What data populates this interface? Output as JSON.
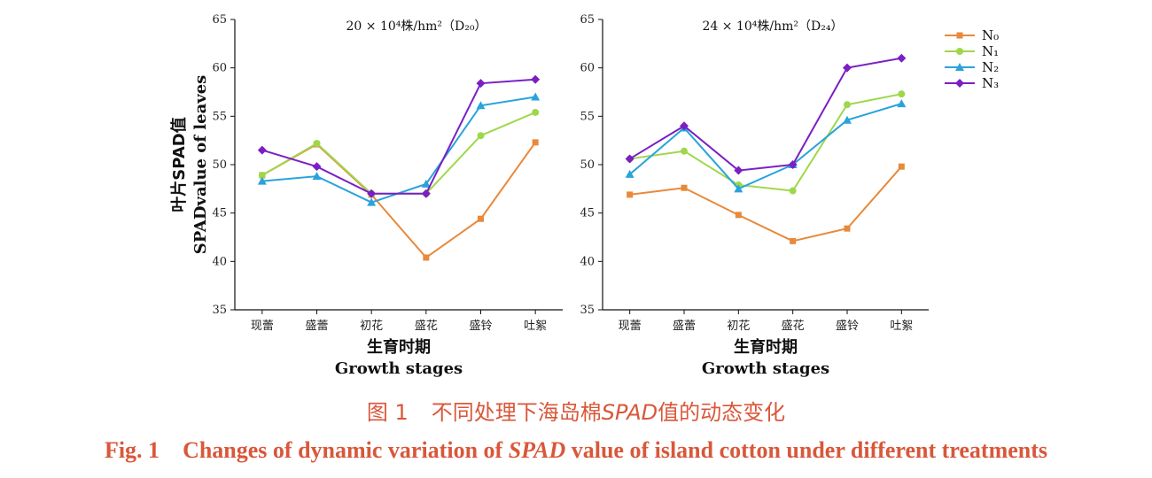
{
  "chart_data": [
    {
      "type": "line",
      "title": "20 × 10⁴株/hm²（D₂₀）",
      "categories": [
        "现蕾",
        "盛蕾",
        "初花",
        "盛花",
        "盛铃",
        "吐絮"
      ],
      "xlabel_cn": "生育时期",
      "xlabel_en": "Growth stages",
      "ylabel_cn": "叶片SPAD值",
      "ylabel_en": "SPADvalue of leaves",
      "ylim": [
        35,
        65
      ],
      "yticks": [
        35,
        40,
        45,
        50,
        55,
        60,
        65
      ],
      "grid": false,
      "series": [
        {
          "name": "N₀",
          "color": "#e8893b",
          "marker": "square",
          "values": [
            48.9,
            52.1,
            46.9,
            40.4,
            44.4,
            52.3
          ]
        },
        {
          "name": "N₁",
          "color": "#9ed84a",
          "marker": "circle",
          "values": [
            48.9,
            52.2,
            47.0,
            47.0,
            53.0,
            55.4
          ]
        },
        {
          "name": "N₂",
          "color": "#2aa3db",
          "marker": "triangle",
          "values": [
            48.3,
            48.8,
            46.1,
            48.0,
            56.1,
            57.0
          ]
        },
        {
          "name": "N₃",
          "color": "#7a1fc4",
          "marker": "diamond",
          "values": [
            51.5,
            49.8,
            47.0,
            47.0,
            58.4,
            58.8
          ]
        }
      ]
    },
    {
      "type": "line",
      "title": "24 × 10⁴株/hm²（D₂₄）",
      "categories": [
        "现蕾",
        "盛蕾",
        "初花",
        "盛花",
        "盛铃",
        "吐絮"
      ],
      "xlabel_cn": "生育时期",
      "xlabel_en": "Growth stages",
      "ylim": [
        35,
        65
      ],
      "yticks": [
        35,
        40,
        45,
        50,
        55,
        60,
        65
      ],
      "grid": false,
      "series": [
        {
          "name": "N₀",
          "color": "#e8893b",
          "marker": "square",
          "values": [
            46.9,
            47.6,
            44.8,
            42.1,
            43.4,
            49.8
          ]
        },
        {
          "name": "N₁",
          "color": "#9ed84a",
          "marker": "circle",
          "values": [
            50.6,
            51.4,
            47.9,
            47.3,
            56.2,
            57.3
          ]
        },
        {
          "name": "N₂",
          "color": "#2aa3db",
          "marker": "triangle",
          "values": [
            49.0,
            53.8,
            47.5,
            50.0,
            54.6,
            56.3
          ]
        },
        {
          "name": "N₃",
          "color": "#7a1fc4",
          "marker": "diamond",
          "values": [
            50.6,
            54.0,
            49.4,
            50.0,
            60.0,
            61.0
          ]
        }
      ]
    }
  ],
  "legend": {
    "placement": "top-right",
    "entries": [
      "N₀",
      "N₁",
      "N₂",
      "N₃"
    ]
  },
  "caption": {
    "cn_label": "图 1",
    "cn_text_before": "不同处理下海岛棉",
    "cn_italic": "SPAD",
    "cn_text_after": "值的动态变化",
    "en_label": "Fig. 1",
    "en_text_before": "Changes of dynamic variation of",
    "en_italic": "SPAD",
    "en_text_after": "value of island cotton under different treatments"
  }
}
